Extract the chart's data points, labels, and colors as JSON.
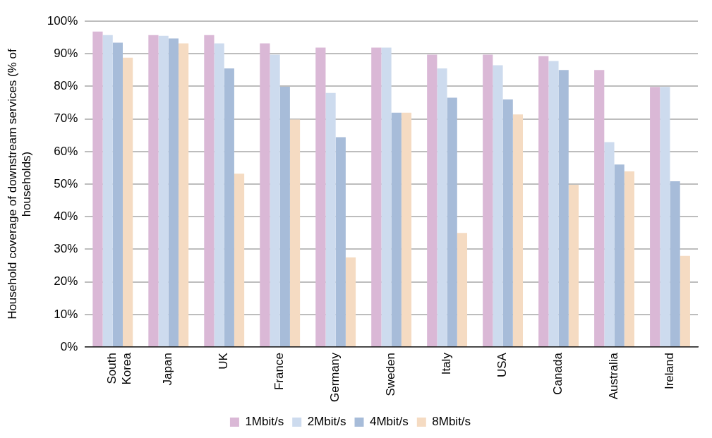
{
  "chart_data": {
    "type": "bar",
    "ylabel": "Household coverage of downstream services (% of households)",
    "categories": [
      "South Korea",
      "Japan",
      "UK",
      "France",
      "Germany",
      "Sweden",
      "Italy",
      "USA",
      "Canada",
      "Australia",
      "Ireland"
    ],
    "series": [
      {
        "name": "1Mbit/s",
        "color": "#dab8d6",
        "values": [
          96.8,
          95.7,
          95.7,
          93.2,
          91.9,
          91.9,
          89.7,
          89.7,
          89.3,
          85.0,
          79.8
        ]
      },
      {
        "name": "2Mbit/s",
        "color": "#cddbee",
        "values": [
          95.7,
          95.5,
          93.2,
          89.7,
          78.0,
          91.9,
          85.5,
          86.5,
          87.8,
          62.9,
          79.8
        ]
      },
      {
        "name": "4Mbit/s",
        "color": "#a7bcd9",
        "values": [
          93.4,
          94.7,
          85.5,
          79.9,
          64.4,
          71.9,
          76.5,
          76.0,
          85.0,
          56.0,
          50.9
        ]
      },
      {
        "name": "8Mbit/s",
        "color": "#f5dbc2",
        "values": [
          88.8,
          93.2,
          53.2,
          69.8,
          27.5,
          71.9,
          35.0,
          71.4,
          49.8,
          53.9,
          28.0
        ]
      }
    ],
    "ylim": [
      0,
      100
    ],
    "yticks": [
      {
        "value": 0,
        "label": "0%"
      },
      {
        "value": 10,
        "label": "10%"
      },
      {
        "value": 20,
        "label": "20%"
      },
      {
        "value": 30,
        "label": "30%"
      },
      {
        "value": 40,
        "label": "40%"
      },
      {
        "value": 50,
        "label": "50%"
      },
      {
        "value": 60,
        "label": "60%"
      },
      {
        "value": 70,
        "label": "70%"
      },
      {
        "value": 80,
        "label": "80%"
      },
      {
        "value": 90,
        "label": "90%"
      },
      {
        "value": 100,
        "label": "100%"
      }
    ],
    "grid": "y",
    "legend": "bottom"
  }
}
